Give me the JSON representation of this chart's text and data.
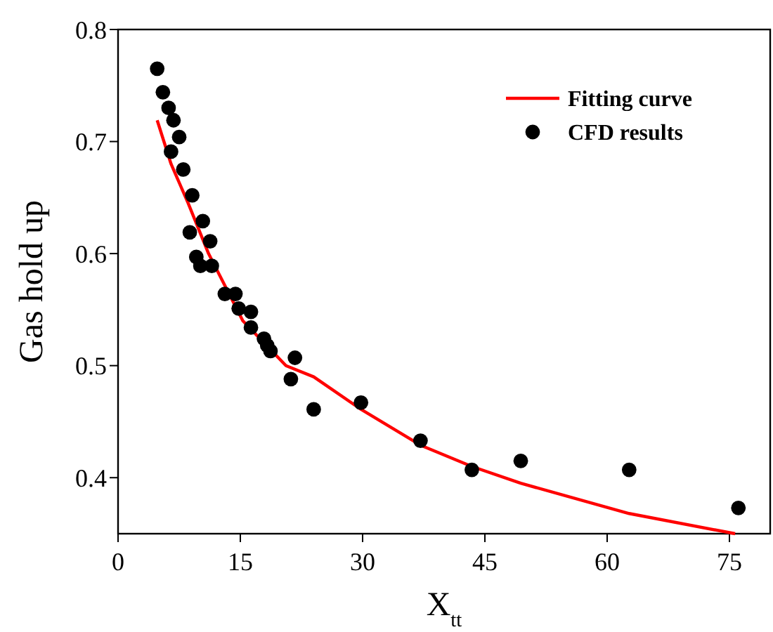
{
  "chart_data": {
    "type": "scatter",
    "xlabel": "X$_{tt}$",
    "ylabel": "Gas hold up",
    "xlim": [
      0,
      80
    ],
    "ylim": [
      0.35,
      0.8
    ],
    "xticks": [
      0,
      15,
      30,
      45,
      60,
      75
    ],
    "yticks": [
      0.4,
      0.5,
      0.6,
      0.7,
      0.8
    ],
    "grid": false,
    "legend": "top right",
    "series": [
      {
        "name": "Fitting curve",
        "type": "line",
        "color": "#ff0000",
        "line_style": "solid",
        "x": [
          4.8,
          6.5,
          8.6,
          11.1,
          15.3,
          20.6,
          24.0,
          29.8,
          37.1,
          43.4,
          49.4,
          62.7,
          75.7
        ],
        "values": [
          0.719,
          0.68,
          0.645,
          0.6,
          0.54,
          0.5,
          0.49,
          0.461,
          0.429,
          0.41,
          0.395,
          0.368,
          0.35
        ]
      },
      {
        "name": "CFD results",
        "color": "#000000",
        "marker": "circle",
        "x": [
          4.8,
          5.5,
          6.2,
          6.8,
          7.5,
          6.5,
          8.0,
          9.1,
          8.8,
          10.4,
          9.6,
          10.1,
          11.3,
          11.5,
          13.1,
          14.4,
          14.8,
          16.3,
          16.3,
          17.9,
          18.3,
          18.7,
          21.7,
          21.2,
          24.0,
          29.8,
          37.1,
          43.4,
          49.4,
          62.7,
          76.1
        ],
        "values": [
          0.765,
          0.744,
          0.73,
          0.719,
          0.704,
          0.691,
          0.675,
          0.652,
          0.619,
          0.629,
          0.597,
          0.589,
          0.611,
          0.589,
          0.564,
          0.564,
          0.551,
          0.548,
          0.534,
          0.524,
          0.518,
          0.513,
          0.507,
          0.488,
          0.461,
          0.467,
          0.433,
          0.407,
          0.415,
          0.407,
          0.373
        ]
      }
    ]
  }
}
